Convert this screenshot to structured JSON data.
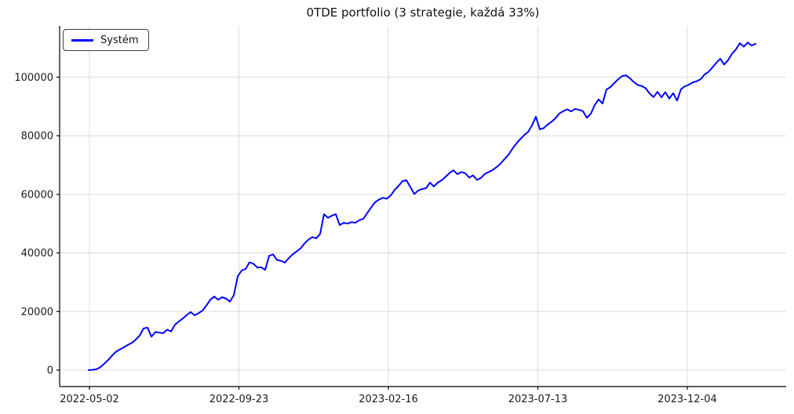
{
  "chart_data": {
    "type": "line",
    "title": "0TDE portfolio (3 strategie, každá 33%)",
    "xlabel": "",
    "ylabel": "",
    "grid": true,
    "legend_position": "upper left",
    "background_color": "#ffffff",
    "grid_color": "#dcdcdc",
    "axis_color": "#000000",
    "text_color": "#1a1a1a",
    "yticks": [
      0,
      20000,
      40000,
      60000,
      80000,
      100000
    ],
    "ylim": [
      -5621,
      117506
    ],
    "x_axis": {
      "labels": [
        "2022-05-02",
        "2022-09-23",
        "2023-02-16",
        "2023-07-13",
        "2023-12-04"
      ],
      "positions_index": [
        0.2,
        38.3,
        76.4,
        114.5,
        152.6
      ]
    },
    "series": [
      {
        "name": "Systém",
        "color": "#0000ff",
        "values": [
          0,
          100,
          300,
          1000,
          2200,
          3500,
          5000,
          6300,
          7100,
          7800,
          8600,
          9300,
          10400,
          11800,
          14200,
          14500,
          11400,
          13000,
          12800,
          12600,
          13800,
          13200,
          15500,
          16600,
          17600,
          18800,
          19800,
          18700,
          19400,
          20300,
          22000,
          24000,
          25100,
          24000,
          24900,
          24400,
          23400,
          25500,
          32000,
          34000,
          34500,
          36800,
          36300,
          35000,
          35100,
          34200,
          39000,
          39500,
          37600,
          37300,
          36700,
          38200,
          39500,
          40500,
          41500,
          43200,
          44500,
          45400,
          45000,
          46500,
          53200,
          52000,
          52700,
          53200,
          49500,
          50300,
          50000,
          50500,
          50300,
          51200,
          51600,
          53600,
          55500,
          57300,
          58200,
          58800,
          58500,
          59600,
          61500,
          62900,
          64500,
          64800,
          62500,
          60100,
          61300,
          61800,
          62100,
          64000,
          62700,
          64000,
          64800,
          66000,
          67300,
          68200,
          66900,
          67600,
          67200,
          65700,
          66500,
          64900,
          65600,
          67000,
          67600,
          68300,
          69300,
          70500,
          72000,
          73500,
          75500,
          77300,
          78800,
          80200,
          81300,
          83500,
          86500,
          82200,
          82600,
          83800,
          84800,
          86000,
          87600,
          88400,
          89000,
          88300,
          89200,
          88800,
          88400,
          86100,
          87500,
          90500,
          92400,
          91000,
          95800,
          96600,
          98000,
          99300,
          100400,
          100600,
          99600,
          98300,
          97300,
          97000,
          96200,
          94400,
          93200,
          95000,
          93100,
          94900,
          92700,
          94500,
          92000,
          95900,
          96900,
          97400,
          98200,
          98600,
          99300,
          100900,
          101800,
          103300,
          104900,
          106300,
          104300,
          105800,
          108000,
          109500,
          111600,
          110400,
          111800,
          110800,
          111400
        ]
      }
    ]
  }
}
